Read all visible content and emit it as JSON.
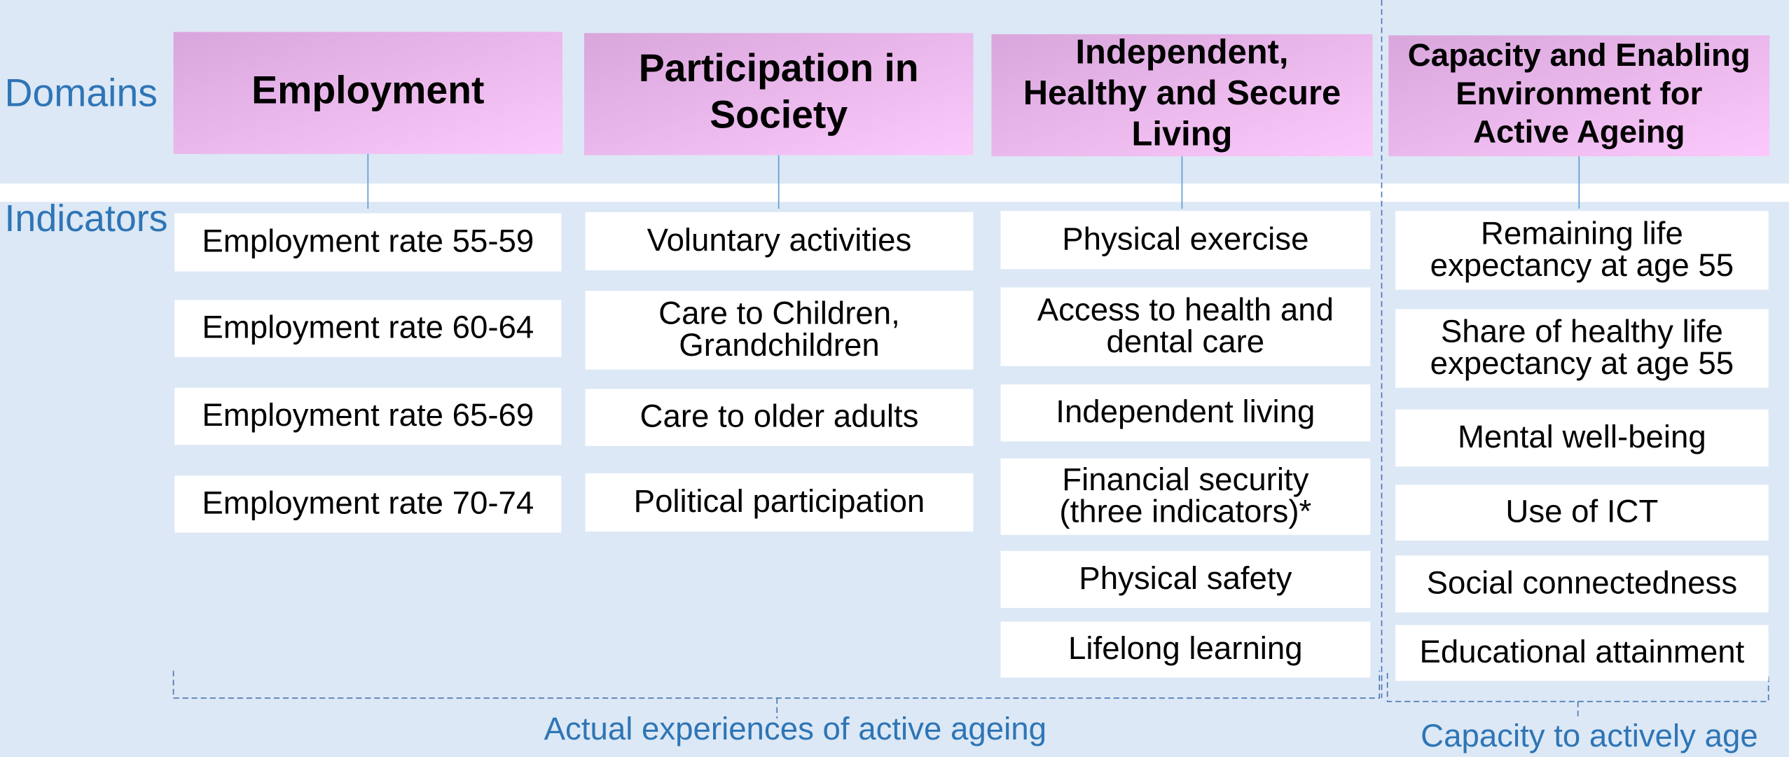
{
  "row_labels": {
    "domains": "Domains",
    "indicators": "Indicators"
  },
  "domains": [
    {
      "title": [
        "Employment"
      ],
      "indicators": [
        [
          "Employment rate 55-59"
        ],
        [
          "Employment rate 60-64"
        ],
        [
          "Employment rate 65-69"
        ],
        [
          "Employment rate 70-74"
        ]
      ]
    },
    {
      "title": [
        "Participation in",
        "Society"
      ],
      "indicators": [
        [
          "Voluntary activities"
        ],
        [
          "Care to Children,",
          "Grandchildren"
        ],
        [
          "Care to older adults"
        ],
        [
          "Political participation"
        ]
      ]
    },
    {
      "title": [
        "Independent,",
        "Healthy and Secure",
        "Living"
      ],
      "indicators": [
        [
          "Physical exercise"
        ],
        [
          "Access to health and",
          "dental care"
        ],
        [
          "Independent living"
        ],
        [
          "Financial security",
          "(three indicators)*"
        ],
        [
          "Physical safety"
        ],
        [
          "Lifelong learning"
        ]
      ]
    },
    {
      "title": [
        "Capacity and Enabling",
        "Environment for",
        "Active Ageing"
      ],
      "indicators": [
        [
          "Remaining life",
          "expectancy at age 55"
        ],
        [
          "Share of healthy life",
          "expectancy at age 55"
        ],
        [
          "Mental well-being"
        ],
        [
          "Use of ICT"
        ],
        [
          "Social connectedness"
        ],
        [
          "Educational attainment"
        ]
      ]
    }
  ],
  "groups": [
    {
      "label": "Actual experiences of active ageing"
    },
    {
      "label": "Capacity to actively age"
    }
  ]
}
